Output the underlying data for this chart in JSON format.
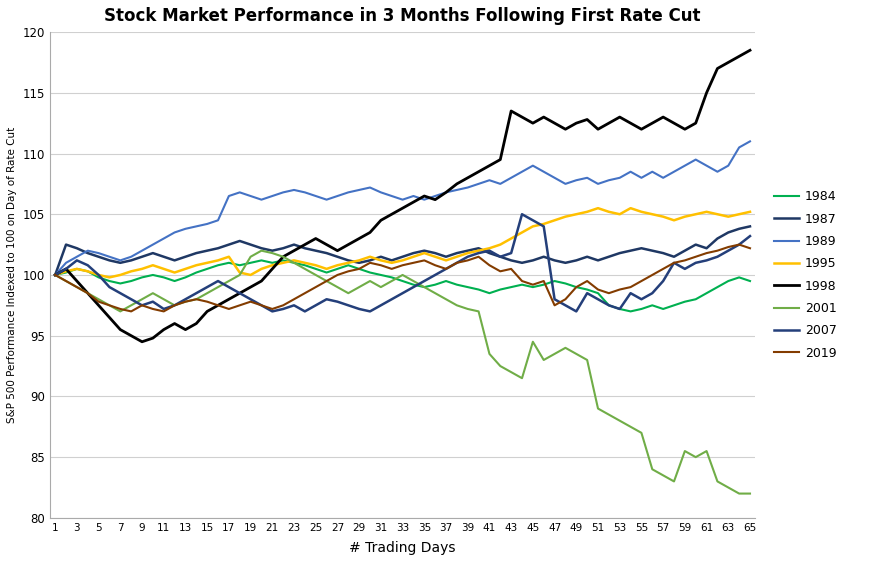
{
  "title": "Stock Market Performance in 3 Months Following First Rate Cut",
  "xlabel": "# Trading Days",
  "ylabel": "S&P 500 Performance Indexed to 100 on Day of Rate Cut",
  "xlim": [
    1,
    65
  ],
  "ylim": [
    80,
    120
  ],
  "yticks": [
    80,
    85,
    90,
    95,
    100,
    105,
    110,
    115,
    120
  ],
  "series": {
    "1984": {
      "color": "#00b050",
      "linewidth": 1.5,
      "values": [
        100,
        100.2,
        100.5,
        100.3,
        99.8,
        99.5,
        99.3,
        99.5,
        99.8,
        100.0,
        99.8,
        99.5,
        99.8,
        100.2,
        100.5,
        100.8,
        101.0,
        100.8,
        101.0,
        101.2,
        101.0,
        101.2,
        101.0,
        100.8,
        100.5,
        100.2,
        100.5,
        100.8,
        100.5,
        100.2,
        100.0,
        99.8,
        99.5,
        99.2,
        99.0,
        99.2,
        99.5,
        99.2,
        99.0,
        98.8,
        98.5,
        98.8,
        99.0,
        99.2,
        99.0,
        99.2,
        99.5,
        99.3,
        99.0,
        98.8,
        98.5,
        97.5,
        97.2,
        97.0,
        97.2,
        97.5,
        97.2,
        97.5,
        97.8,
        98.0,
        98.5,
        99.0,
        99.5,
        99.8,
        99.5
      ]
    },
    "1987": {
      "color": "#1f3864",
      "linewidth": 1.8,
      "values": [
        100,
        102.5,
        102.2,
        101.8,
        101.5,
        101.2,
        101.0,
        101.2,
        101.5,
        101.8,
        101.5,
        101.2,
        101.5,
        101.8,
        102.0,
        102.2,
        102.5,
        102.8,
        102.5,
        102.2,
        102.0,
        102.2,
        102.5,
        102.2,
        102.0,
        101.8,
        101.5,
        101.2,
        101.0,
        101.2,
        101.5,
        101.2,
        101.5,
        101.8,
        102.0,
        101.8,
        101.5,
        101.8,
        102.0,
        102.2,
        101.8,
        101.5,
        101.2,
        101.0,
        101.2,
        101.5,
        101.2,
        101.0,
        101.2,
        101.5,
        101.2,
        101.5,
        101.8,
        102.0,
        102.2,
        102.0,
        101.8,
        101.5,
        102.0,
        102.5,
        102.2,
        103.0,
        103.5,
        103.8,
        104.0
      ]
    },
    "1989": {
      "color": "#4472c4",
      "linewidth": 1.5,
      "values": [
        100,
        101.0,
        101.5,
        102.0,
        101.8,
        101.5,
        101.2,
        101.5,
        102.0,
        102.5,
        103.0,
        103.5,
        103.8,
        104.0,
        104.2,
        104.5,
        106.5,
        106.8,
        106.5,
        106.2,
        106.5,
        106.8,
        107.0,
        106.8,
        106.5,
        106.2,
        106.5,
        106.8,
        107.0,
        107.2,
        106.8,
        106.5,
        106.2,
        106.5,
        106.2,
        106.5,
        106.8,
        107.0,
        107.2,
        107.5,
        107.8,
        107.5,
        108.0,
        108.5,
        109.0,
        108.5,
        108.0,
        107.5,
        107.8,
        108.0,
        107.5,
        107.8,
        108.0,
        108.5,
        108.0,
        108.5,
        108.0,
        108.5,
        109.0,
        109.5,
        109.0,
        108.5,
        109.0,
        110.5,
        111.0
      ]
    },
    "1995": {
      "color": "#ffc000",
      "linewidth": 1.8,
      "values": [
        100,
        100.3,
        100.5,
        100.3,
        100.0,
        99.8,
        100.0,
        100.3,
        100.5,
        100.8,
        100.5,
        100.2,
        100.5,
        100.8,
        101.0,
        101.2,
        101.5,
        100.2,
        100.0,
        100.5,
        100.8,
        101.0,
        101.2,
        101.0,
        100.8,
        100.5,
        100.8,
        101.0,
        101.2,
        101.5,
        101.2,
        101.0,
        101.2,
        101.5,
        101.8,
        101.5,
        101.2,
        101.5,
        101.8,
        102.0,
        102.2,
        102.5,
        103.0,
        103.5,
        104.0,
        104.2,
        104.5,
        104.8,
        105.0,
        105.2,
        105.5,
        105.2,
        105.0,
        105.5,
        105.2,
        105.0,
        104.8,
        104.5,
        104.8,
        105.0,
        105.2,
        105.0,
        104.8,
        105.0,
        105.2
      ]
    },
    "1998": {
      "color": "#000000",
      "linewidth": 2.0,
      "values": [
        100,
        100.5,
        99.5,
        98.5,
        97.5,
        96.5,
        95.5,
        95.0,
        94.5,
        94.8,
        95.5,
        96.0,
        95.5,
        96.0,
        97.0,
        97.5,
        98.0,
        98.5,
        99.0,
        99.5,
        100.5,
        101.5,
        102.0,
        102.5,
        103.0,
        102.5,
        102.0,
        102.5,
        103.0,
        103.5,
        104.5,
        105.0,
        105.5,
        106.0,
        106.5,
        106.2,
        106.8,
        107.5,
        108.0,
        108.5,
        109.0,
        109.5,
        113.5,
        113.0,
        112.5,
        113.0,
        112.5,
        112.0,
        112.5,
        112.8,
        112.0,
        112.5,
        113.0,
        112.5,
        112.0,
        112.5,
        113.0,
        112.5,
        112.0,
        112.5,
        115.0,
        117.0,
        117.5,
        118.0,
        118.5
      ]
    },
    "2001": {
      "color": "#70ad47",
      "linewidth": 1.5,
      "values": [
        100,
        99.5,
        99.0,
        98.5,
        98.0,
        97.5,
        97.0,
        97.5,
        98.0,
        98.5,
        98.0,
        97.5,
        97.8,
        98.0,
        98.5,
        99.0,
        99.5,
        100.0,
        101.5,
        102.0,
        101.8,
        101.5,
        101.0,
        100.5,
        100.0,
        99.5,
        99.0,
        98.5,
        99.0,
        99.5,
        99.0,
        99.5,
        100.0,
        99.5,
        99.0,
        98.5,
        98.0,
        97.5,
        97.2,
        97.0,
        93.5,
        92.5,
        92.0,
        91.5,
        94.5,
        93.0,
        93.5,
        94.0,
        93.5,
        93.0,
        89.0,
        88.5,
        88.0,
        87.5,
        87.0,
        84.0,
        83.5,
        83.0,
        85.5,
        85.0,
        85.5,
        83.0,
        82.5,
        82.0,
        82.0
      ]
    },
    "2007": {
      "color": "#243f7a",
      "linewidth": 1.8,
      "values": [
        100,
        100.5,
        101.2,
        100.8,
        100.0,
        99.0,
        98.5,
        98.0,
        97.5,
        97.8,
        97.2,
        97.5,
        98.0,
        98.5,
        99.0,
        99.5,
        99.0,
        98.5,
        98.0,
        97.5,
        97.0,
        97.2,
        97.5,
        97.0,
        97.5,
        98.0,
        97.8,
        97.5,
        97.2,
        97.0,
        97.5,
        98.0,
        98.5,
        99.0,
        99.5,
        100.0,
        100.5,
        101.0,
        101.5,
        101.8,
        102.0,
        101.5,
        101.8,
        105.0,
        104.5,
        104.0,
        98.0,
        97.5,
        97.0,
        98.5,
        98.0,
        97.5,
        97.2,
        98.5,
        98.0,
        98.5,
        99.5,
        101.0,
        100.5,
        101.0,
        101.2,
        101.5,
        102.0,
        102.5,
        103.2
      ]
    },
    "2019": {
      "color": "#833c00",
      "linewidth": 1.5,
      "values": [
        100,
        99.5,
        99.0,
        98.5,
        97.8,
        97.5,
        97.2,
        97.0,
        97.5,
        97.2,
        97.0,
        97.5,
        97.8,
        98.0,
        97.8,
        97.5,
        97.2,
        97.5,
        97.8,
        97.5,
        97.2,
        97.5,
        98.0,
        98.5,
        99.0,
        99.5,
        100.0,
        100.3,
        100.5,
        101.0,
        100.8,
        100.5,
        100.8,
        101.0,
        101.2,
        100.8,
        100.5,
        101.0,
        101.2,
        101.5,
        100.8,
        100.3,
        100.5,
        99.5,
        99.2,
        99.5,
        97.5,
        98.0,
        99.0,
        99.5,
        98.8,
        98.5,
        98.8,
        99.0,
        99.5,
        100.0,
        100.5,
        101.0,
        101.2,
        101.5,
        101.8,
        102.0,
        102.3,
        102.5,
        102.2
      ]
    }
  },
  "legend_order": [
    "1984",
    "1987",
    "1989",
    "1995",
    "1998",
    "2001",
    "2007",
    "2019"
  ],
  "background_color": "#ffffff",
  "grid_color": "#d0d0d0"
}
